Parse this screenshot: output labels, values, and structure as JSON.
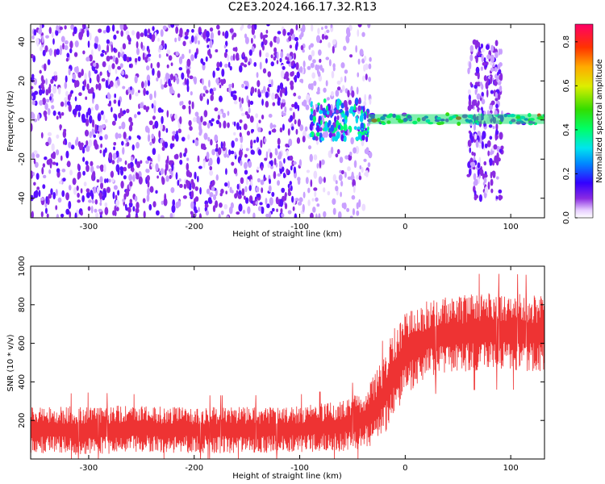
{
  "title": "C2E3.2024.166.17.32.R13",
  "chart_data": [
    {
      "type": "heatmap",
      "xlabel": "Height of straight line (km)",
      "ylabel": "Frequency (Hz)",
      "xlim": [
        -355,
        132
      ],
      "ylim": [
        -50,
        49
      ],
      "xticks": [
        -300,
        -200,
        -100,
        0,
        100
      ],
      "xtick_labels": [
        "-300",
        "-200",
        "-100",
        "0",
        "100"
      ],
      "yticks": [
        -40,
        -20,
        0,
        20,
        40
      ],
      "ytick_labels": [
        "-40",
        "-20",
        "0",
        "20",
        "40"
      ],
      "colorbar": {
        "label": "Normalized spectral amplitude",
        "range": [
          0.0,
          0.88
        ],
        "ticks": [
          0.0,
          0.2,
          0.4,
          0.6,
          0.8
        ],
        "tick_labels": [
          "0.0",
          "0.2",
          "0.4",
          "0.6",
          "0.8"
        ]
      },
      "regions": [
        {
          "x": [
            -355,
            -100
          ],
          "y": [
            -50,
            49
          ],
          "amplitude": 0.12
        },
        {
          "x": [
            -100,
            -33
          ],
          "y": [
            -50,
            49
          ],
          "amplitude": 0.06
        },
        {
          "x": [
            -90,
            -35
          ],
          "y": [
            -10,
            10
          ],
          "amplitude": 0.3
        },
        {
          "x": [
            -35,
            132
          ],
          "y": [
            -2,
            3
          ],
          "amplitude": 0.35
        },
        {
          "x": [
            60,
            92
          ],
          "y": [
            -40,
            40
          ],
          "amplitude": 0.12
        }
      ],
      "grid": false
    },
    {
      "type": "line",
      "xlabel": "Height of straight line (km)",
      "ylabel": "SNR (10 * v/v)",
      "xlim": [
        -355,
        132
      ],
      "ylim": [
        0,
        1000
      ],
      "xticks": [
        -300,
        -200,
        -100,
        0,
        100
      ],
      "xtick_labels": [
        "-300",
        "-200",
        "-100",
        "0",
        "100"
      ],
      "yticks": [
        200,
        400,
        600,
        800,
        1000
      ],
      "ytick_labels": [
        "200",
        "400",
        "600",
        "800",
        "1000"
      ],
      "series": [
        {
          "color": "#ee3333",
          "x": [
            -355,
            -300,
            -250,
            -200,
            -150,
            -100,
            -60,
            -40,
            -30,
            -20,
            -15,
            -10,
            -5,
            0,
            10,
            20,
            30,
            50,
            70,
            100,
            132
          ],
          "y_center": [
            150,
            150,
            155,
            150,
            150,
            155,
            170,
            200,
            250,
            330,
            400,
            450,
            500,
            540,
            580,
            620,
            640,
            650,
            660,
            660,
            650
          ],
          "y_spread": [
            120,
            130,
            120,
            120,
            120,
            120,
            130,
            150,
            180,
            200,
            230,
            230,
            230,
            230,
            200,
            200,
            200,
            200,
            200,
            200,
            200
          ]
        }
      ],
      "grid": false
    }
  ]
}
